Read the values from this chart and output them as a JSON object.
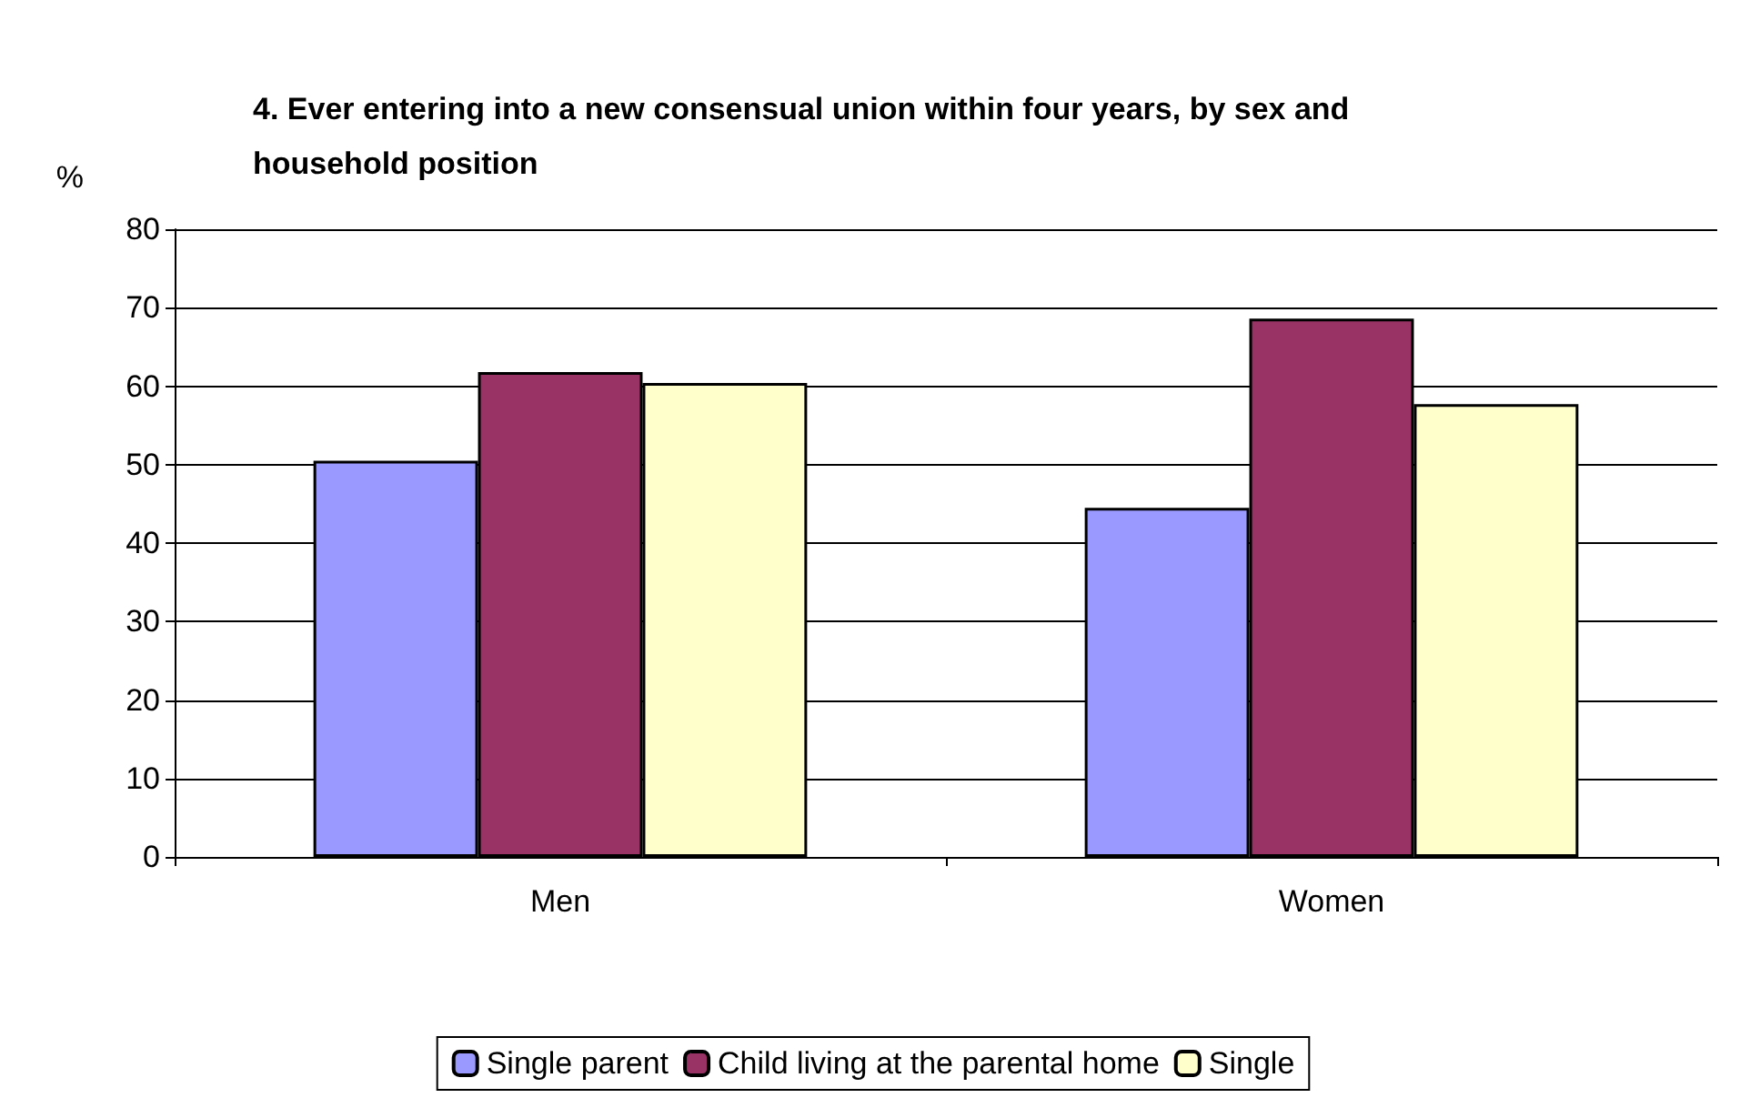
{
  "chart_data": {
    "type": "bar",
    "title": "4. Ever entering into a new consensual union within four years, by sex and household position",
    "ylabel": "%",
    "categories": [
      "Men",
      "Women"
    ],
    "series": [
      {
        "name": "Single parent",
        "color": "#9999ff",
        "values": [
          50.5,
          44.5
        ]
      },
      {
        "name": "Child living at the parental home",
        "color": "#993366",
        "values": [
          61.8,
          68.6
        ]
      },
      {
        "name": "Single",
        "color": "#ffffcc",
        "values": [
          60.4,
          57.7
        ]
      }
    ],
    "ylim": [
      0,
      80
    ],
    "yticks": [
      0,
      10,
      20,
      30,
      40,
      50,
      60,
      70,
      80
    ],
    "grid": "y",
    "legend": "bottom"
  }
}
